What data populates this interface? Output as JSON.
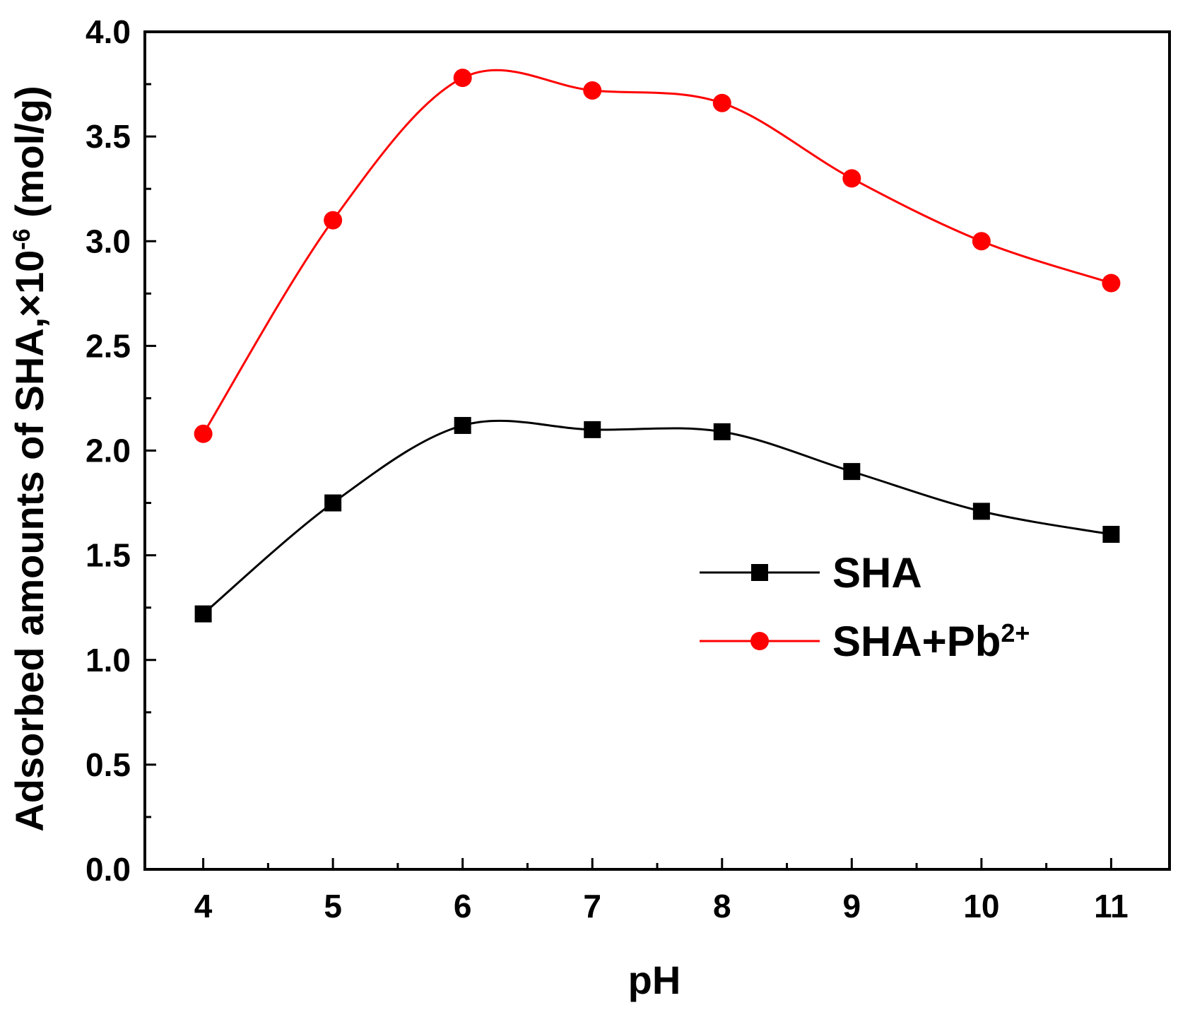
{
  "chart_data": {
    "type": "line",
    "title": "",
    "xlabel": "pH",
    "ylabel": {
      "main": "Adsorbed amounts of SHA,×10",
      "exponent": "-6",
      "unit": " (mol/g)"
    },
    "x": [
      4,
      5,
      6,
      7,
      8,
      9,
      10,
      11
    ],
    "xlim": [
      3.55,
      11.45
    ],
    "ylim": [
      0.0,
      4.0
    ],
    "xticks": [
      "4",
      "5",
      "6",
      "7",
      "8",
      "9",
      "10",
      "11"
    ],
    "yticks": [
      "0.0",
      "0.5",
      "1.0",
      "1.5",
      "2.0",
      "2.5",
      "3.0",
      "3.5",
      "4.0"
    ],
    "grid": false,
    "legend_position": "center-right",
    "series": [
      {
        "name": "SHA",
        "legend_label": "SHA",
        "legend_sup": "",
        "marker": "square",
        "color": "#000000",
        "values": [
          1.22,
          1.75,
          2.12,
          2.1,
          2.09,
          1.9,
          1.71,
          1.6
        ]
      },
      {
        "name": "SHA+Pb2+",
        "legend_label": "SHA+Pb",
        "legend_sup": "2+",
        "marker": "circle",
        "color": "#ff0000",
        "values": [
          2.08,
          3.1,
          3.78,
          3.72,
          3.66,
          3.3,
          3.0,
          2.8
        ]
      }
    ]
  }
}
